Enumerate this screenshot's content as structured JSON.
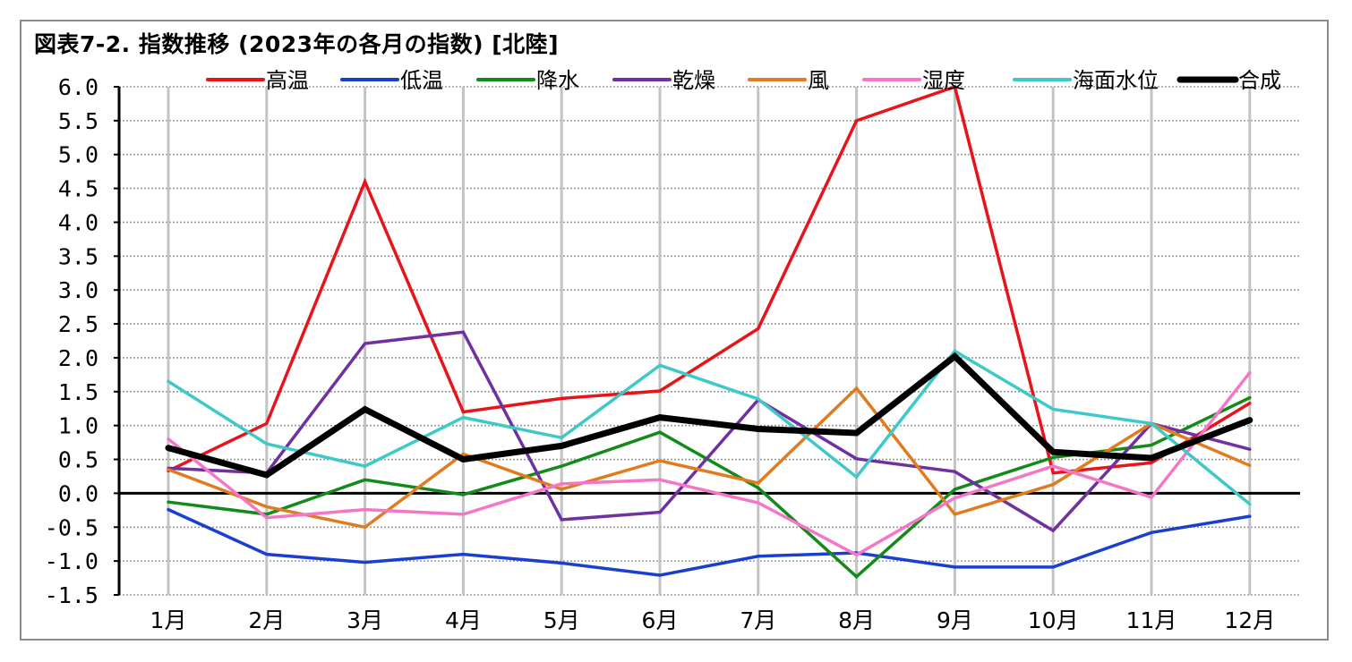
{
  "chart_data": {
    "type": "line",
    "title": "図表7-2. 指数推移 (2023年の各月の指数) [北陸]",
    "categories": [
      "1月",
      "2月",
      "3月",
      "4月",
      "5月",
      "6月",
      "7月",
      "8月",
      "9月",
      "10月",
      "11月",
      "12月"
    ],
    "ylim": [
      -1.5,
      6.0
    ],
    "ystep": 0.5,
    "y_tick_labels": [
      "-1.5",
      "-1.0",
      "-0.5",
      "0.0",
      "0.5",
      "1.0",
      "1.5",
      "2.0",
      "2.5",
      "3.0",
      "3.5",
      "4.0",
      "4.5",
      "5.0",
      "5.5",
      "6.0"
    ],
    "grid": true,
    "legend_position": "top",
    "series": [
      {
        "name": "高温",
        "color": "#e8141b",
        "values": [
          0.33,
          1.03,
          4.6,
          1.2,
          1.4,
          1.51,
          2.43,
          5.5,
          6.0,
          0.3,
          0.45,
          1.33
        ]
      },
      {
        "name": "低温",
        "color": "#1a3fcf",
        "values": [
          -0.24,
          -0.9,
          -1.02,
          -0.9,
          -1.03,
          -1.21,
          -0.93,
          -0.88,
          -1.09,
          -1.09,
          -0.58,
          -0.34
        ]
      },
      {
        "name": "降水",
        "color": "#138a1a",
        "values": [
          -0.13,
          -0.31,
          0.2,
          -0.02,
          0.4,
          0.9,
          0.08,
          -1.23,
          0.06,
          0.53,
          0.71,
          1.41
        ]
      },
      {
        "name": "乾燥",
        "color": "#7030a0",
        "values": [
          0.37,
          0.3,
          2.21,
          2.38,
          -0.39,
          -0.28,
          1.38,
          0.51,
          0.32,
          -0.55,
          1.03,
          0.65
        ]
      },
      {
        "name": "風",
        "color": "#e07b20",
        "values": [
          0.35,
          -0.2,
          -0.5,
          0.58,
          0.06,
          0.48,
          0.15,
          1.55,
          -0.31,
          0.13,
          1.03,
          0.41
        ]
      },
      {
        "name": "湿度",
        "color": "#f576c7",
        "values": [
          0.8,
          -0.36,
          -0.24,
          -0.31,
          0.14,
          0.2,
          -0.14,
          -0.91,
          -0.07,
          0.4,
          -0.06,
          1.78
        ]
      },
      {
        "name": "海面水位",
        "color": "#3ec8c8",
        "values": [
          1.65,
          0.73,
          0.4,
          1.12,
          0.82,
          1.89,
          1.39,
          0.24,
          2.1,
          1.24,
          1.03,
          -0.16
        ]
      },
      {
        "name": "合成",
        "color": "#000000",
        "values": [
          0.67,
          0.27,
          1.24,
          0.5,
          0.7,
          1.12,
          0.95,
          0.89,
          2.02,
          0.61,
          0.52,
          1.08
        ],
        "bold": true
      }
    ]
  }
}
